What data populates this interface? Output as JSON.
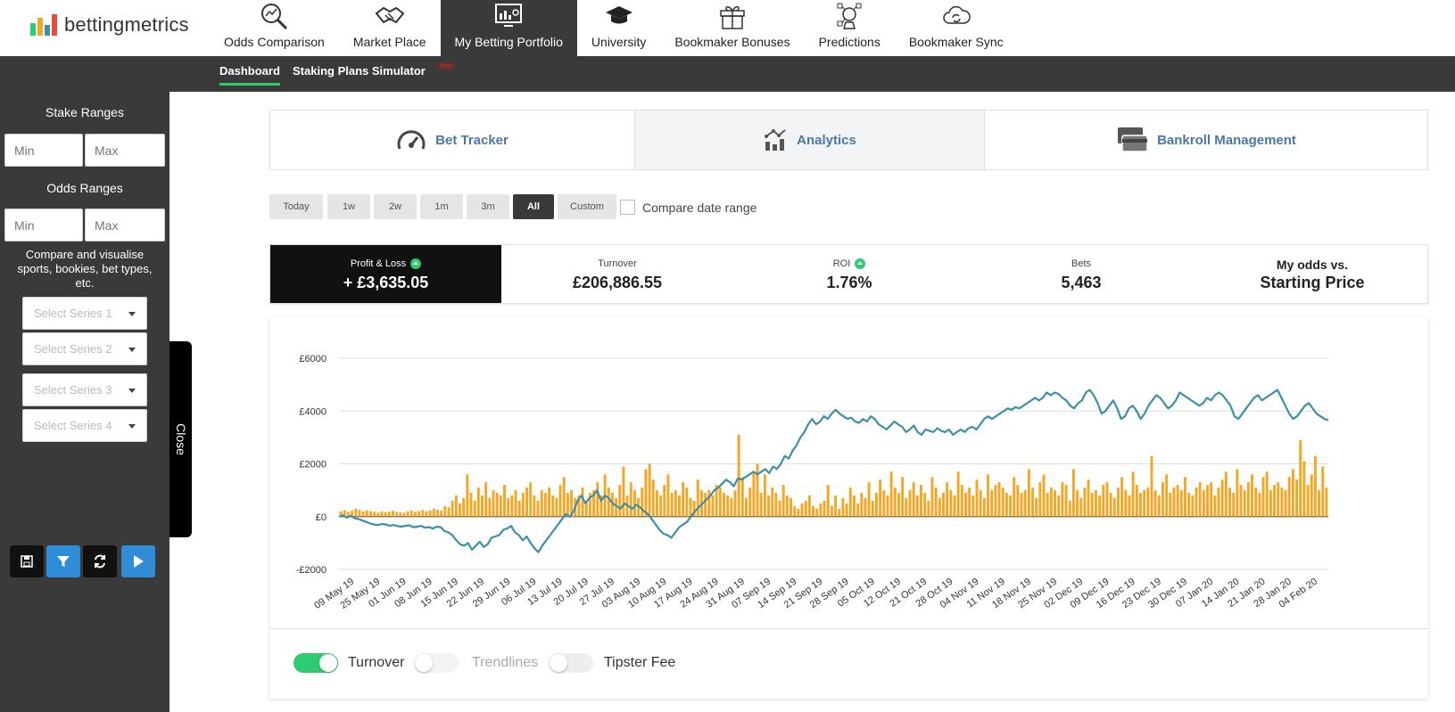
{
  "brand": {
    "name": "bettingmetrics"
  },
  "nav": [
    {
      "label": "Odds Comparison",
      "icon": "magnifier-chart-icon"
    },
    {
      "label": "Market Place",
      "icon": "handshake-icon"
    },
    {
      "label": "My Betting Portfolio",
      "icon": "dashboard-screen-icon",
      "active": true
    },
    {
      "label": "University",
      "icon": "graduation-cap-icon"
    },
    {
      "label": "Bookmaker Bonuses",
      "icon": "gift-icon"
    },
    {
      "label": "Predictions",
      "icon": "crystal-network-icon"
    },
    {
      "label": "Bookmaker Sync",
      "icon": "cloud-sync-icon"
    }
  ],
  "subnav": {
    "tabs": [
      {
        "label": "Dashboard",
        "active": true
      },
      {
        "label": "Staking Plans Simulator"
      }
    ],
    "badge": "New"
  },
  "sidebar": {
    "stake_title": "Stake Ranges",
    "stake_min_placeholder": "Min",
    "stake_max_placeholder": "Max",
    "odds_title": "Odds Ranges",
    "odds_min_placeholder": "Min",
    "odds_max_placeholder": "Max",
    "compare_text": "Compare and visualise sports, bookies, bet types, etc.",
    "series": [
      "Select Series 1",
      "Select Series 2",
      "Select Series 3",
      "Select Series 4"
    ],
    "buttons": [
      "save-icon",
      "filter-icon",
      "refresh-icon",
      "play-icon"
    ],
    "close_label": "Close"
  },
  "main_tabs": [
    {
      "label": "Bet Tracker",
      "icon": "speedometer-icon"
    },
    {
      "label": "Analytics",
      "icon": "analytics-icon",
      "active": true
    },
    {
      "label": "Bankroll Management",
      "icon": "cards-icon"
    }
  ],
  "date_ranges": [
    {
      "label": "Today"
    },
    {
      "label": "1w"
    },
    {
      "label": "2w"
    },
    {
      "label": "1m"
    },
    {
      "label": "3m"
    },
    {
      "label": "All",
      "active": true
    },
    {
      "label": "Custom"
    }
  ],
  "compare_date_range": "Compare date range",
  "stats": [
    {
      "label": "Profit & Loss",
      "value": "+ £3,635.05",
      "trend": "up"
    },
    {
      "label": "Turnover",
      "value": "£206,886.55"
    },
    {
      "label": "ROI",
      "value": "1.76%",
      "trend": "up"
    },
    {
      "label": "Bets",
      "value": "5,463"
    },
    {
      "label": "My odds vs.",
      "value": "Starting Price"
    }
  ],
  "toggles": [
    {
      "label": "Turnover",
      "on": true
    },
    {
      "label": "Trendlines",
      "on": false,
      "disabled": true
    },
    {
      "label": "Tipster Fee",
      "on": false
    }
  ],
  "colors": {
    "accent_green": "#2ecc71",
    "bar": "#f5a623",
    "line": "#3b8fa8",
    "button_blue": "#2f8dd6",
    "dark": "#3a3a3a"
  },
  "chart_data": {
    "type": "bar+line",
    "ylim": [
      -2000,
      6000
    ],
    "yticks": [
      -2000,
      0,
      2000,
      4000,
      6000
    ],
    "ytick_labels": [
      "-£2000",
      "£0",
      "£2000",
      "£4000",
      "£6000"
    ],
    "xtick_labels": [
      "09 May 19",
      "25 May 19",
      "01 Jun 19",
      "08 Jun 19",
      "15 Jun 19",
      "22 Jun 19",
      "29 Jun 19",
      "06 Jul 19",
      "13 Jul 19",
      "20 Jul 19",
      "27 Jul 19",
      "03 Aug 19",
      "10 Aug 19",
      "17 Aug 19",
      "24 Aug 19",
      "31 Aug 19",
      "07 Sep 19",
      "14 Sep 19",
      "21 Sep 19",
      "28 Sep 19",
      "05 Oct 19",
      "12 Oct 19",
      "21 Oct 19",
      "28 Oct 19",
      "04 Nov 19",
      "11 Nov 19",
      "18 Nov 19",
      "25 Nov 19",
      "02 Dec 19",
      "09 Dec 19",
      "16 Dec 19",
      "23 Dec 19",
      "30 Dec 19",
      "07 Jan 20",
      "14 Jan 20",
      "21 Jan 20",
      "28 Jan 20",
      "04 Feb 20"
    ],
    "series": [
      {
        "name": "Turnover",
        "type": "bar",
        "values": [
          200,
          250,
          180,
          220,
          300,
          260,
          200,
          240,
          210,
          180,
          150,
          200,
          170,
          190,
          220,
          180,
          160,
          150,
          200,
          230,
          180,
          210,
          250,
          200,
          230,
          300,
          260,
          220,
          400,
          350,
          600,
          800,
          500,
          700,
          1600,
          900,
          600,
          1100,
          800,
          1300,
          700,
          1000,
          900,
          800,
          1200,
          700,
          800,
          1000,
          600,
          900,
          1100,
          1300,
          800,
          600,
          1000,
          900,
          1100,
          800,
          700,
          1200,
          1500,
          900,
          1000,
          700,
          800,
          1100,
          600,
          900,
          1000,
          1300,
          800,
          1600,
          1100,
          900,
          700,
          1200,
          1900,
          800,
          1300,
          1000,
          700,
          1100,
          1800,
          2000,
          1400,
          1000,
          800,
          1200,
          1600,
          900,
          1000,
          800,
          1300,
          1100,
          700,
          600,
          1400,
          1000,
          900,
          1000,
          800,
          1200,
          1100,
          900,
          800,
          700,
          1000,
          3100,
          1500,
          700,
          1100,
          1700,
          2000,
          900,
          1600,
          800,
          1100,
          900,
          600,
          1200,
          800,
          700,
          400,
          300,
          500,
          600,
          800,
          400,
          300,
          500,
          600,
          1200,
          400,
          800,
          300,
          700,
          500,
          1100,
          800,
          500,
          900,
          700,
          1300,
          600,
          900,
          1400,
          1000,
          800,
          1700,
          1100,
          900,
          1500,
          700,
          1000,
          1300,
          800,
          1200,
          900,
          600,
          1500,
          1100,
          700,
          900,
          1300,
          1000,
          800,
          1700,
          1200,
          900,
          1100,
          800,
          1400,
          1000,
          700,
          1600,
          1000,
          1200,
          1300,
          1100,
          900,
          800,
          1500,
          1200,
          900,
          1000,
          1800,
          1100,
          700,
          1300,
          1600,
          900,
          1100,
          1000,
          800,
          1300,
          1200,
          600,
          1800,
          1000,
          700,
          1100,
          1400,
          900,
          1000,
          800,
          1200,
          1300,
          900,
          700,
          1100,
          1500,
          1000,
          800,
          1700,
          1200,
          900,
          1000,
          1100,
          2300,
          1000,
          800,
          1300,
          1600,
          900,
          1100,
          1200,
          1000,
          1500,
          900,
          800,
          1100,
          1300,
          1000,
          1200,
          1300,
          800,
          1100,
          1400,
          1700,
          1100,
          900,
          1800,
          1200,
          1000,
          1300,
          1600,
          1100,
          900,
          1500,
          1700,
          1000,
          1200,
          1300,
          1100,
          1000,
          1500,
          1800,
          1400,
          2900,
          2100,
          1200,
          1600,
          2300,
          1000,
          1900,
          1100
        ]
      },
      {
        "name": "Profit & Loss",
        "type": "line",
        "values": [
          0,
          50,
          -40,
          30,
          -60,
          -90,
          -150,
          -200,
          -260,
          -300,
          -320,
          -280,
          -300,
          -350,
          -320,
          -360,
          -380,
          -350,
          -330,
          -400,
          -380,
          -350,
          -420,
          -400,
          -450,
          -380,
          -400,
          -550,
          -600,
          -700,
          -900,
          -1050,
          -1100,
          -1000,
          -1250,
          -1100,
          -950,
          -1150,
          -1050,
          -800,
          -750,
          -700,
          -500,
          -450,
          -350,
          -600,
          -700,
          -900,
          -750,
          -1000,
          -1200,
          -1350,
          -1100,
          -900,
          -700,
          -500,
          -300,
          -100,
          100,
          0,
          200,
          600,
          800,
          500,
          700,
          800,
          1000,
          600,
          800,
          700,
          500,
          400,
          300,
          500,
          400,
          300,
          450,
          350,
          200,
          100,
          -100,
          -300,
          -500,
          -650,
          -700,
          -800,
          -600,
          -400,
          -300,
          -200,
          0,
          200,
          350,
          500,
          650,
          800,
          1000,
          1100,
          1250,
          1400,
          1300,
          1150,
          1450,
          1400,
          1500,
          1600,
          1700,
          1600,
          1700,
          1800,
          1650,
          1900,
          1800,
          2000,
          2300,
          2200,
          2500,
          2700,
          3000,
          3200,
          3500,
          3700,
          3500,
          3600,
          3800,
          3700,
          3900,
          4050,
          3900,
          3800,
          3700,
          3750,
          3600,
          3550,
          3700,
          3600,
          3800,
          3700,
          3500,
          3400,
          3300,
          3450,
          3600,
          3500,
          3400,
          3200,
          3300,
          3450,
          3200,
          3100,
          3300,
          3250,
          3200,
          3350,
          3250,
          3200,
          3300,
          3100,
          3200,
          3300,
          3200,
          3350,
          3400,
          3300,
          3500,
          3700,
          3800,
          3700,
          3800,
          3900,
          4000,
          4100,
          4050,
          4150,
          4100,
          4200,
          4300,
          4400,
          4500,
          4400,
          4500,
          4700,
          4600,
          4700,
          4650,
          4500,
          4400,
          4200,
          4100,
          4300,
          4400,
          4700,
          4800,
          4600,
          4300,
          3900,
          4000,
          4200,
          4400,
          4100,
          3700,
          3800,
          4100,
          4200,
          4000,
          3700,
          3900,
          4200,
          4400,
          4600,
          4500,
          4300,
          4100,
          4200,
          4400,
          4700,
          4600,
          4500,
          4400,
          4300,
          4200,
          4300,
          4500,
          4400,
          4600,
          4700,
          4600,
          4400,
          4200,
          3800,
          3700,
          3900,
          4100,
          4300,
          4500,
          4600,
          4400,
          4500,
          4600,
          4700,
          4800,
          4500,
          4200,
          3900,
          3700,
          3800,
          4000,
          4200,
          4300,
          4100,
          3900,
          3800,
          3700,
          3650
        ]
      }
    ]
  }
}
